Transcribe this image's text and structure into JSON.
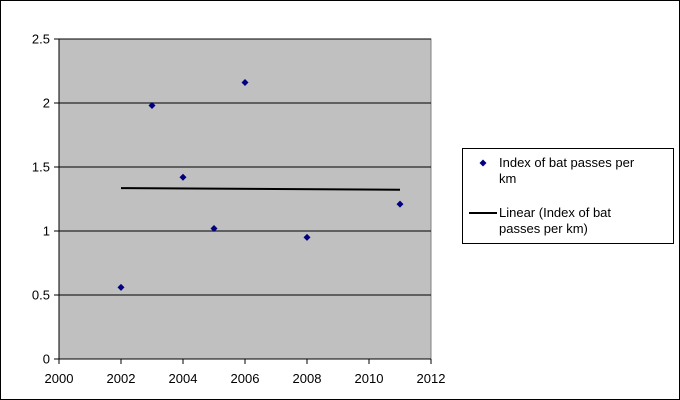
{
  "chart_data": {
    "type": "scatter",
    "title": "",
    "xlabel": "",
    "ylabel": "",
    "xlim": [
      2000,
      2012
    ],
    "ylim": [
      0,
      2.5
    ],
    "x_ticks": [
      2000,
      2002,
      2004,
      2006,
      2008,
      2010,
      2012
    ],
    "x_tick_labels": [
      "2000",
      "2002",
      "2004",
      "2006",
      "2008",
      "2010",
      "2012"
    ],
    "y_ticks": [
      0,
      0.5,
      1,
      1.5,
      2,
      2.5
    ],
    "y_tick_labels": [
      "0",
      "0.5",
      "1",
      "1.5",
      "2",
      "2.5"
    ],
    "grid": "horizontal",
    "plot_background": "#c0c0c0",
    "legend_position": "right",
    "series": [
      {
        "name": "Index of bat passes per km",
        "marker": "diamond",
        "color": "#000080",
        "x": [
          2002,
          2003,
          2004,
          2005,
          2006,
          2008,
          2011
        ],
        "y": [
          0.56,
          1.98,
          1.42,
          1.02,
          2.16,
          0.95,
          1.21
        ]
      }
    ],
    "trendline": {
      "name": "Linear (Index of bat passes per km)",
      "color": "#000000",
      "x": [
        2002,
        2011
      ],
      "y": [
        1.335,
        1.322
      ]
    }
  },
  "legend": {
    "entry_1_line_1": "Index of bat passes per",
    "entry_1_line_2": "km",
    "entry_2_line_1": "Linear (Index of bat",
    "entry_2_line_2": "passes per km)"
  }
}
